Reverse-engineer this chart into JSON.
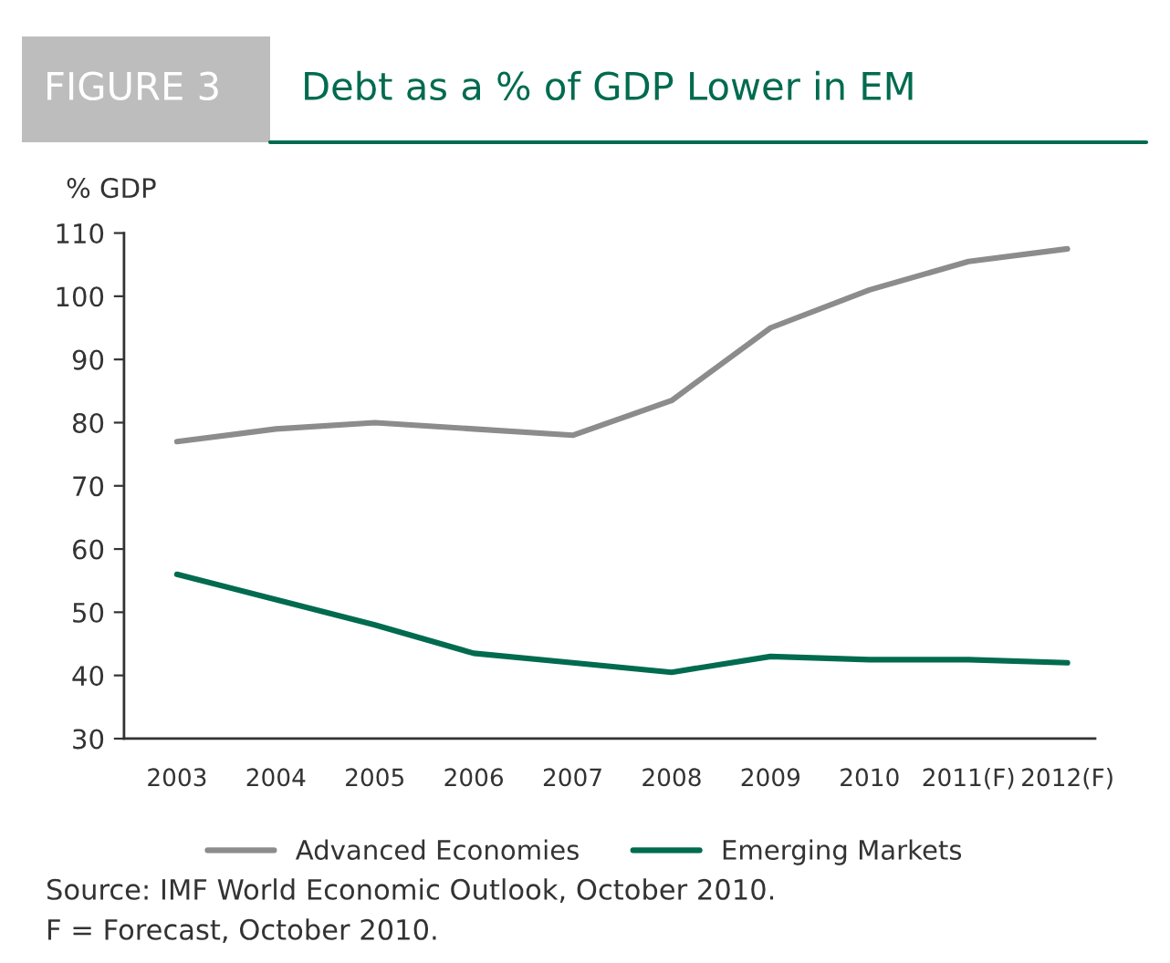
{
  "chart_data": {
    "type": "line",
    "title": "Debt as a % of GDP Lower in EM",
    "ylabel": "% GDP",
    "annotations": [
      "FIGURE 3",
      "Source: IMF World Economic Outlook, October 2010.",
      "F = Forecast, October 2010."
    ],
    "categories": [
      "2003",
      "2004",
      "2005",
      "2006",
      "2007",
      "2008",
      "2009",
      "2010",
      "2011(F)",
      "2012(F)"
    ],
    "series": [
      {
        "name": "Advanced Economies",
        "color": "#8c8c8c",
        "values": [
          77,
          79,
          80,
          79,
          78,
          83.5,
          95,
          101,
          105.5,
          107.5
        ]
      },
      {
        "name": "Emerging Markets",
        "color": "#006b4f",
        "values": [
          56,
          52,
          48,
          43.5,
          42,
          40.5,
          43,
          42.5,
          42.5,
          42
        ]
      }
    ],
    "ylim": [
      30,
      110
    ],
    "yticks": [
      30,
      40,
      50,
      60,
      70,
      80,
      90,
      100,
      110
    ],
    "grid": false,
    "legend": "bottom",
    "marker": "none",
    "line_style": "solid"
  }
}
